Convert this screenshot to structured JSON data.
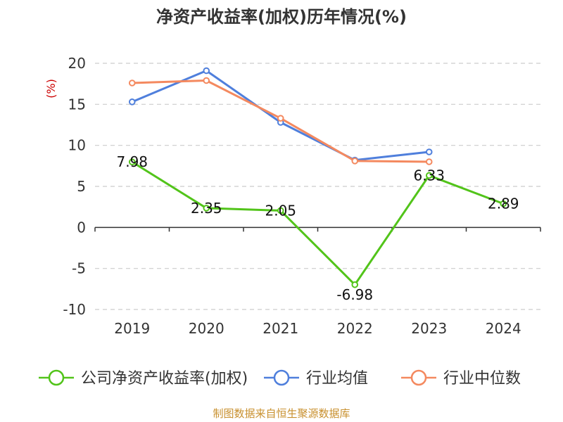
{
  "chart_data": {
    "type": "line",
    "title": "净资产收益率(加权)历年情况(%)",
    "ylabel": "(%)",
    "categories": [
      "2019",
      "2020",
      "2021",
      "2022",
      "2023",
      "2024"
    ],
    "ylim": [
      -10,
      20
    ],
    "yticks": [
      20,
      15,
      10,
      5,
      0,
      -5,
      -10
    ],
    "grid": true,
    "legend_position": "bottom",
    "series": [
      {
        "name": "公司净资产收益率(加权)",
        "color": "#52c41a",
        "values": [
          7.98,
          2.35,
          2.05,
          -6.98,
          6.33,
          2.89
        ],
        "labels": [
          "7.98",
          "2.35",
          "2.05",
          "-6.98",
          "6.33",
          "2.89"
        ]
      },
      {
        "name": "行业均值",
        "color": "#4f7fdc",
        "values": [
          15.3,
          19.1,
          12.8,
          8.2,
          9.2,
          null
        ]
      },
      {
        "name": "行业中位数",
        "color": "#f4895f",
        "values": [
          17.6,
          17.9,
          13.3,
          8.1,
          8.0,
          null
        ]
      }
    ],
    "source": "制图数据来自恒生聚源数据库"
  }
}
